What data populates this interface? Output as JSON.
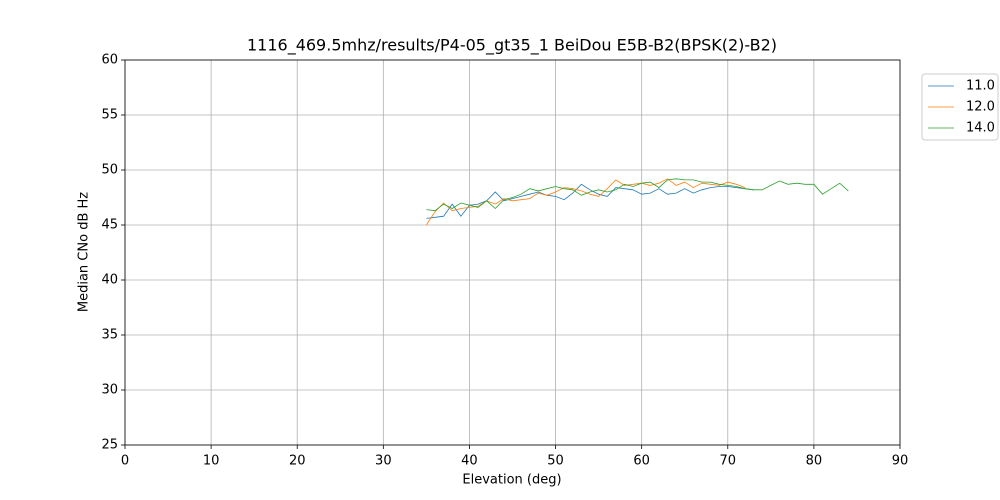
{
  "chart_data": {
    "type": "line",
    "title": "1116_469.5mhz/results/P4-05_gt35_1 BeiDou E5B-B2(BPSK(2)-B2)",
    "x_label": "Elevation (deg)",
    "y_label": "Median CNo dB Hz",
    "x": [
      35,
      36,
      37,
      38,
      39,
      40,
      41,
      42,
      43,
      44,
      45,
      46,
      47,
      48,
      49,
      50,
      51,
      52,
      53,
      54,
      55,
      56,
      57,
      58,
      59,
      60,
      61,
      62,
      63,
      64,
      65,
      66,
      67,
      68,
      69,
      70,
      71,
      72,
      73,
      74,
      75,
      76,
      77,
      78,
      79,
      80,
      81,
      82,
      83,
      84
    ],
    "series": [
      {
        "name": "11.0",
        "color": "#1f77b4",
        "values": [
          45.6,
          45.7,
          45.8,
          46.9,
          45.8,
          46.8,
          46.9,
          47.2,
          48.0,
          47.2,
          47.4,
          47.6,
          47.8,
          48.0,
          47.7,
          47.6,
          47.3,
          47.9,
          48.7,
          48.2,
          47.8,
          47.6,
          48.4,
          48.3,
          48.2,
          47.8,
          47.9,
          48.3,
          47.8,
          47.9,
          48.3,
          47.9,
          48.2,
          48.4,
          48.5,
          48.5,
          48.4,
          48.3,
          48.2,
          null,
          null,
          null,
          null,
          null,
          null,
          null,
          null,
          null,
          null,
          null
        ]
      },
      {
        "name": "12.0",
        "color": "#ff7f0e",
        "values": [
          45.0,
          46.2,
          47.0,
          46.3,
          46.5,
          46.6,
          46.7,
          47.2,
          46.9,
          47.4,
          47.2,
          47.3,
          47.4,
          47.9,
          47.7,
          48.0,
          48.4,
          48.3,
          48.1,
          47.8,
          47.6,
          48.3,
          49.1,
          48.6,
          48.7,
          48.8,
          48.6,
          48.8,
          49.2,
          48.6,
          48.9,
          48.4,
          48.8,
          48.7,
          48.6,
          48.9,
          48.7,
          48.4,
          null,
          null,
          null,
          null,
          null,
          null,
          null,
          null,
          null,
          null,
          null,
          null
        ]
      },
      {
        "name": "14.0",
        "color": "#2ca02c",
        "values": [
          46.4,
          46.3,
          46.9,
          46.5,
          47.0,
          46.8,
          46.6,
          47.2,
          46.5,
          47.3,
          47.5,
          47.8,
          48.3,
          48.1,
          48.3,
          48.5,
          48.3,
          48.2,
          47.7,
          48.0,
          48.2,
          48.0,
          48.2,
          48.7,
          48.5,
          48.8,
          48.9,
          48.4,
          49.1,
          49.2,
          49.1,
          49.1,
          48.9,
          48.9,
          48.7,
          48.6,
          48.5,
          48.3,
          48.2,
          48.2,
          48.6,
          49.0,
          48.7,
          48.8,
          48.7,
          48.7,
          47.8,
          48.3,
          48.8,
          48.1
        ]
      }
    ],
    "xlim": [
      0,
      90
    ],
    "xticks": [
      0,
      10,
      20,
      30,
      40,
      50,
      60,
      70,
      80,
      90
    ],
    "ylim": [
      25,
      60
    ],
    "yticks": [
      25,
      30,
      35,
      40,
      45,
      50,
      55,
      60
    ],
    "grid": true,
    "legend": "outside-upper-right"
  }
}
